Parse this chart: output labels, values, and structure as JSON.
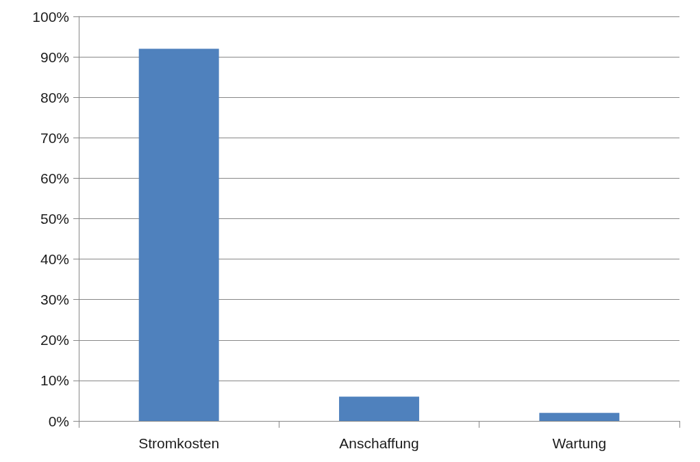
{
  "chart_data": {
    "type": "bar",
    "categories": [
      "Stromkosten",
      "Anschaffung",
      "Wartung"
    ],
    "values": [
      92,
      6,
      2
    ],
    "color": "#4f81bd",
    "ylim": [
      0,
      100
    ],
    "yticks": [
      {
        "value": 0,
        "label": "0%"
      },
      {
        "value": 10,
        "label": "10%"
      },
      {
        "value": 20,
        "label": "20%"
      },
      {
        "value": 30,
        "label": "30%"
      },
      {
        "value": 40,
        "label": "40%"
      },
      {
        "value": 50,
        "label": "50%"
      },
      {
        "value": 60,
        "label": "60%"
      },
      {
        "value": 70,
        "label": "70%"
      },
      {
        "value": 80,
        "label": "80%"
      },
      {
        "value": 90,
        "label": "90%"
      },
      {
        "value": 100,
        "label": "100%"
      }
    ],
    "grid": "y"
  }
}
